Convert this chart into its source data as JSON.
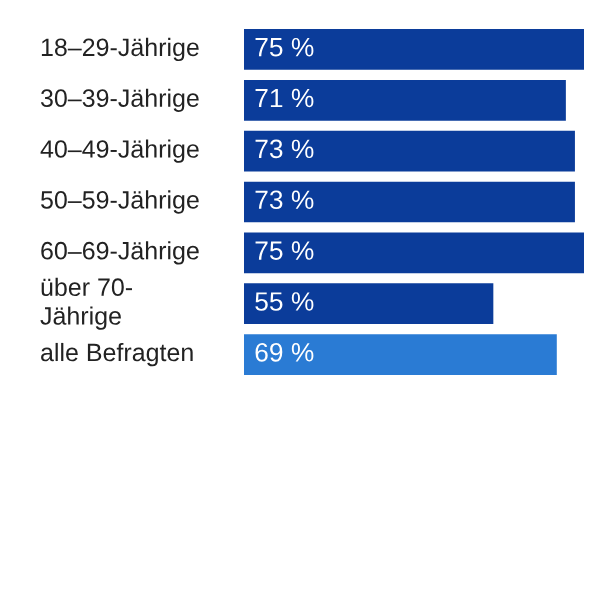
{
  "chart_data": {
    "type": "bar",
    "orientation": "horizontal",
    "categories": [
      "18–29-Jährige",
      "30–39-Jährige",
      "40–49-Jährige",
      "50–59-Jährige",
      "60–69-Jährige",
      "über 70-Jährige",
      "alle Befragten"
    ],
    "values": [
      75,
      71,
      73,
      73,
      75,
      55,
      69
    ],
    "value_labels": [
      "75 %",
      "71 %",
      "73 %",
      "73 %",
      "75 %",
      "55 %",
      "69 %"
    ],
    "colors": [
      "#0b3c9a",
      "#0b3c9a",
      "#0b3c9a",
      "#0b3c9a",
      "#0b3c9a",
      "#0b3c9a",
      "#2a7bd4"
    ]
  }
}
